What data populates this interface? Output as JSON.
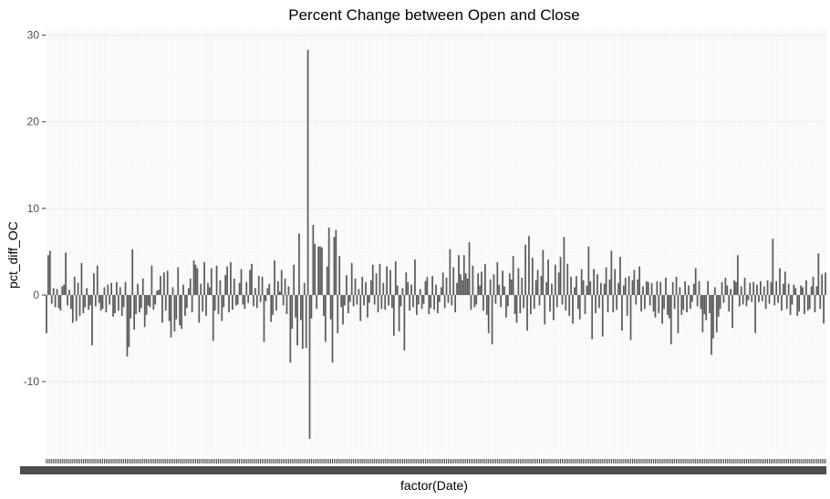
{
  "chart_data": {
    "type": "bar",
    "title": "Percent Change between Open and Close",
    "xlabel": "factor(Date)",
    "ylabel": "pct_diff_OC",
    "ylim": [
      -18.5,
      30.8
    ],
    "yticks": [
      -10,
      0,
      10,
      20,
      30
    ],
    "grid": true,
    "legend": "none",
    "bar_color": "#595959",
    "series": [
      {
        "values": [
          -4.4,
          4.6,
          5.1,
          -1.0,
          0.8,
          -1.4,
          0.7,
          -1.5,
          -1.8,
          1.0,
          1.2,
          4.9,
          -1.2,
          0.6,
          -1.6,
          -3.2,
          2.1,
          -3.0,
          1.4,
          -2.4,
          3.7,
          -2.1,
          -1.4,
          0.8,
          -1.7,
          -1.2,
          -5.8,
          2.5,
          -1.3,
          3.4,
          -0.9,
          -1.8,
          -1.6,
          0.9,
          -2.0,
          1.2,
          -1.1,
          1.4,
          -2.5,
          -2.1,
          1.5,
          -1.8,
          0.9,
          -2.4,
          -1.4,
          1.5,
          -7.1,
          -6.0,
          -2.7,
          5.3,
          -4.0,
          -2.2,
          1.3,
          -2.0,
          -1.5,
          1.9,
          -3.7,
          -2.3,
          -1.2,
          -1.4,
          3.4,
          -1.7,
          -1.1,
          0.5,
          0.6,
          2.2,
          -3.2,
          2.6,
          -1.8,
          2.8,
          -3.0,
          -4.9,
          0.9,
          -4.2,
          -2.8,
          3.2,
          -3.5,
          -3.9,
          1.2,
          -2.4,
          -1.5,
          0.8,
          1.9,
          -2.0,
          4.0,
          3.5,
          3.1,
          -3.2,
          1.3,
          -1.9,
          3.8,
          -2.4,
          1.4,
          0.9,
          3.1,
          -5.3,
          -1.8,
          3.4,
          -2.2,
          1.7,
          -3.0,
          -1.4,
          2.3,
          3.3,
          -2.0,
          3.8,
          -1.7,
          1.9,
          -1.2,
          -1.1,
          1.4,
          3.0,
          -1.1,
          -1.6,
          1.5,
          -0.9,
          2.9,
          3.6,
          -1.3,
          0.8,
          -1.5,
          2.2,
          -0.8,
          2.1,
          -5.4,
          -0.7,
          0.8,
          1.3,
          -3.1,
          -2.3,
          4.0,
          -1.8,
          1.6,
          0.4,
          2.9,
          -1.2,
          1.9,
          -2.2,
          1.0,
          -7.8,
          -3.9,
          3.5,
          -2.6,
          -5.8,
          7.1,
          -2.9,
          -6.2,
          1.4,
          -6.1,
          28.3,
          -16.6,
          -2.7,
          8.1,
          5.9,
          -1.6,
          5.6,
          5.6,
          5.5,
          -2.4,
          -5.4,
          3.3,
          7.8,
          -2.8,
          -7.8,
          6.7,
          7.5,
          -4.4,
          4.5,
          -1.4,
          -3.4,
          -1.2,
          2.3,
          -2.1,
          -0.8,
          3.7,
          -1.3,
          1.9,
          -1.1,
          0.7,
          -3.0,
          2.1,
          -1.2,
          1.5,
          -2.6,
          -0.9,
          1.7,
          3.5,
          -1.1,
          2.5,
          -2.0,
          3.6,
          -1.6,
          1.4,
          -1.7,
          3.3,
          -1.2,
          2.9,
          -1.5,
          -4.7,
          3.9,
          1.1,
          -4.2,
          -1.3,
          0.8,
          -6.4,
          2.6,
          1.5,
          -1.8,
          1.2,
          -1.4,
          4.1,
          -2.3,
          -1.1,
          0.7,
          -1.6,
          -1.0,
          1.6,
          2.1,
          -2.2,
          -1.5,
          2.2,
          -1.7,
          1.2,
          -2.1,
          -0.8,
          0.9,
          2.6,
          -1.5,
          2.0,
          -0.9,
          5.3,
          -1.2,
          3.2,
          -2.0,
          1.4,
          4.6,
          2.4,
          1.7,
          4.6,
          2.5,
          1.9,
          6.1,
          -1.7,
          3.4,
          -1.4,
          -1.1,
          2.5,
          1.1,
          2.7,
          -1.8,
          3.6,
          -2.3,
          -4.4,
          1.8,
          -5.7,
          2.4,
          -1.0,
          3.8,
          1.2,
          -1.4,
          2.8,
          1.0,
          -2.6,
          -1.3,
          2.5,
          1.8,
          4.5,
          -2.2,
          -3.2,
          3.1,
          -2.1,
          2.0,
          -1.5,
          5.8,
          -4.1,
          6.8,
          -2.2,
          4.3,
          -1.6,
          1.7,
          2.9,
          -1.2,
          2.2,
          5.2,
          -3.4,
          1.5,
          4.1,
          -1.9,
          1.3,
          -2.9,
          3.5,
          -1.4,
          2.6,
          4.4,
          -1.1,
          6.7,
          -1.8,
          3.6,
          -2.4,
          2.1,
          -3.3,
          0.9,
          2.2,
          -1.6,
          -2.8,
          3.0,
          1.7,
          -2.2,
          1.1,
          5.6,
          1.6,
          -5.1,
          3.0,
          -2.1,
          2.4,
          -1.5,
          1.4,
          -4.8,
          1.3,
          3.2,
          -2.0,
          1.8,
          5.1,
          -2.0,
          3.0,
          -1.7,
          1.4,
          4.4,
          -4.1,
          1.1,
          2.0,
          -2.4,
          2.2,
          -5.2,
          1.7,
          2.9,
          -1.1,
          1.8,
          3.3,
          -1.9,
          1.0,
          -1.6,
          1.6,
          1.5,
          -1.2,
          1.4,
          -1.9,
          -2.6,
          1.6,
          -2.1,
          1.5,
          -3.3,
          -1.6,
          2.0,
          -2.3,
          -2.7,
          -5.7,
          1.5,
          -1.6,
          2.1,
          -4.4,
          0.9,
          -2.3,
          -1.7,
          1.6,
          -2.0,
          1.1,
          -1.6,
          -0.8,
          1.3,
          3.1,
          -1.3,
          1.6,
          -1.6,
          -4.3,
          -2.2,
          -2.9,
          1.6,
          -2.1,
          -6.9,
          -5.0,
          0.9,
          -4.3,
          -2.5,
          -1.6,
          1.5,
          -0.9,
          2.0,
          1.1,
          -1.9,
          0.7,
          -3.8,
          1.7,
          1.5,
          4.6,
          -1.3,
          1.0,
          -1.1,
          2.0,
          -1.3,
          -0.6,
          1.4,
          -0.8,
          1.5,
          -4.4,
          1.2,
          -0.8,
          1.6,
          -0.7,
          1.0,
          -1.6,
          1.7,
          -1.0,
          1.5,
          6.5,
          -1.2,
          1.6,
          -0.9,
          3.1,
          -1.8,
          1.3,
          2.7,
          -1.6,
          1.3,
          -2.3,
          -1.1,
          1.2,
          0.8,
          -2.4,
          -1.9,
          1.1,
          0.9,
          -2.2,
          1.7,
          -1.8,
          -1.6,
          1.0,
          2.1,
          -2.0,
          1.0,
          4.8,
          -1.6,
          2.4,
          -3.3,
          2.6
        ]
      }
    ]
  }
}
